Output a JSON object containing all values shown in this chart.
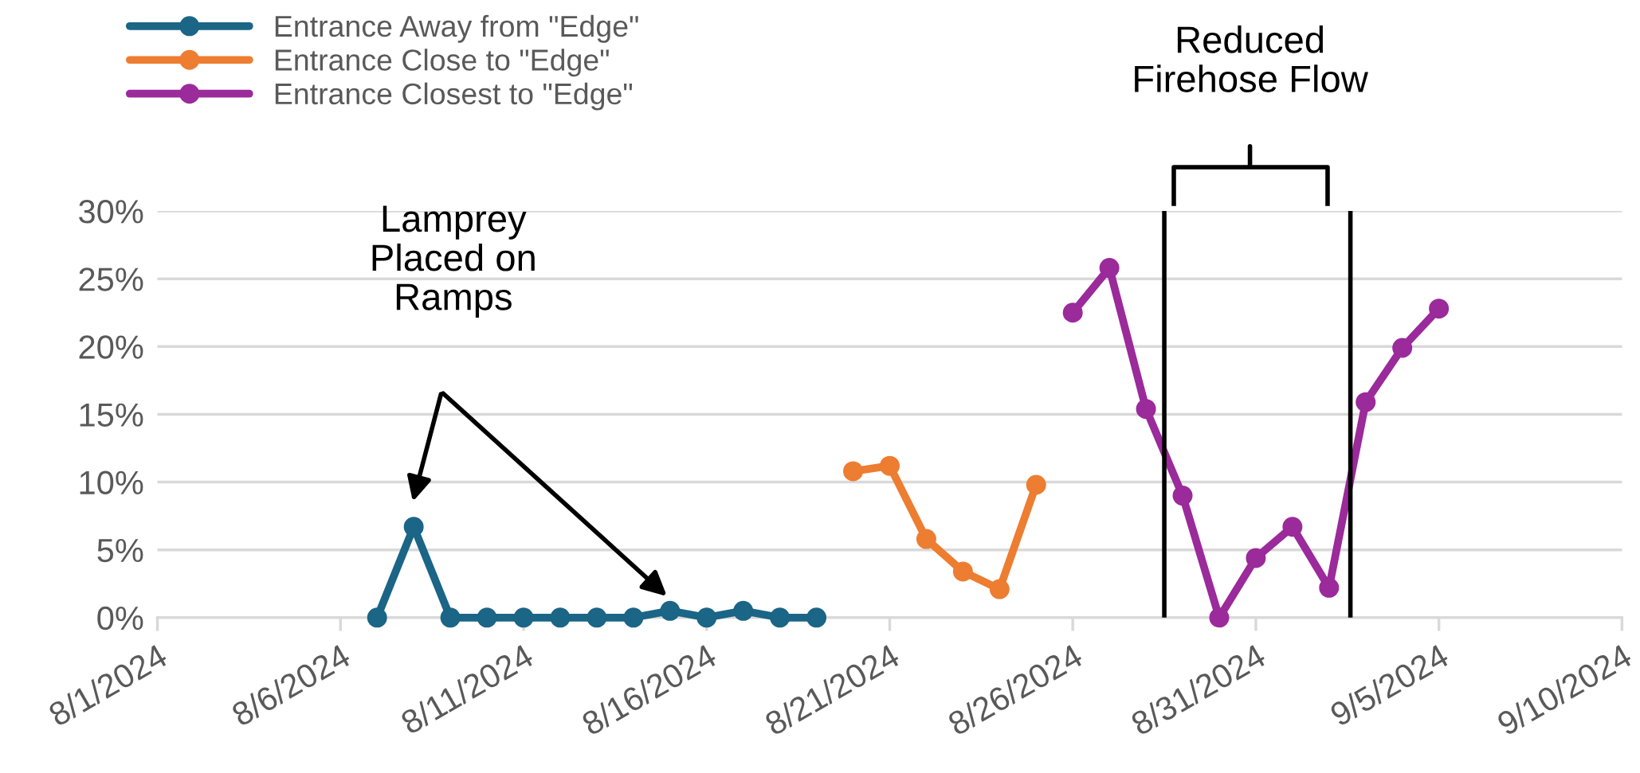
{
  "chart_data": {
    "type": "line",
    "series": [
      {
        "name": "Entrance Away from \"Edge\"",
        "color": "#1b6586",
        "x": [
          "2024-08-07",
          "2024-08-08",
          "2024-08-09",
          "2024-08-10",
          "2024-08-11",
          "2024-08-12",
          "2024-08-13",
          "2024-08-14",
          "2024-08-15",
          "2024-08-16",
          "2024-08-17",
          "2024-08-18",
          "2024-08-19"
        ],
        "values": [
          0,
          6.7,
          0,
          0,
          0,
          0,
          0,
          0,
          0.5,
          0,
          0.5,
          0,
          0
        ]
      },
      {
        "name": "Entrance Close to \"Edge\"",
        "color": "#ed7d31",
        "x": [
          "2024-08-20",
          "2024-08-21",
          "2024-08-22",
          "2024-08-23",
          "2024-08-24",
          "2024-08-25"
        ],
        "values": [
          10.8,
          11.2,
          5.8,
          3.4,
          2.1,
          9.8
        ]
      },
      {
        "name": "Entrance Closest to \"Edge\"",
        "color": "#9b2a9b",
        "x": [
          "2024-08-26",
          "2024-08-27",
          "2024-08-28",
          "2024-08-29",
          "2024-08-30",
          "2024-08-31",
          "2024-09-01",
          "2024-09-02",
          "2024-09-03",
          "2024-09-04",
          "2024-09-05"
        ],
        "values": [
          22.5,
          25.8,
          15.4,
          9.0,
          0,
          4.4,
          6.7,
          2.2,
          15.9,
          19.9,
          22.8
        ]
      }
    ],
    "xlim": [
      "2024-08-01",
      "2024-09-10"
    ],
    "xticks": [
      {
        "value": "2024-08-01",
        "label": "8/1/2024"
      },
      {
        "value": "2024-08-06",
        "label": "8/6/2024"
      },
      {
        "value": "2024-08-11",
        "label": "8/11/2024"
      },
      {
        "value": "2024-08-16",
        "label": "8/16/2024"
      },
      {
        "value": "2024-08-21",
        "label": "8/21/2024"
      },
      {
        "value": "2024-08-26",
        "label": "8/26/2024"
      },
      {
        "value": "2024-08-31",
        "label": "8/31/2024"
      },
      {
        "value": "2024-09-05",
        "label": "9/5/2024"
      },
      {
        "value": "2024-09-10",
        "label": "9/10/2024"
      }
    ],
    "ylim": [
      0,
      30
    ],
    "yticks": [
      {
        "value": 0,
        "label": "0%"
      },
      {
        "value": 5,
        "label": "5%"
      },
      {
        "value": 10,
        "label": "10%"
      },
      {
        "value": 15,
        "label": "15%"
      },
      {
        "value": 20,
        "label": "20%"
      },
      {
        "value": 25,
        "label": "25%"
      },
      {
        "value": 30,
        "label": "30%"
      }
    ],
    "ref_lines": [
      {
        "axis": "x",
        "value": "2024-08-28T12:00",
        "color": "#000000"
      },
      {
        "axis": "x",
        "value": "2024-09-02T14:00",
        "color": "#000000"
      }
    ],
    "annotations": [
      "Lamprey\nPlaced on\nRamps",
      "Reduced\nFirehose Flow"
    ],
    "grid": "y",
    "legend": "top left",
    "marker": "circle",
    "line_style": "solid"
  }
}
